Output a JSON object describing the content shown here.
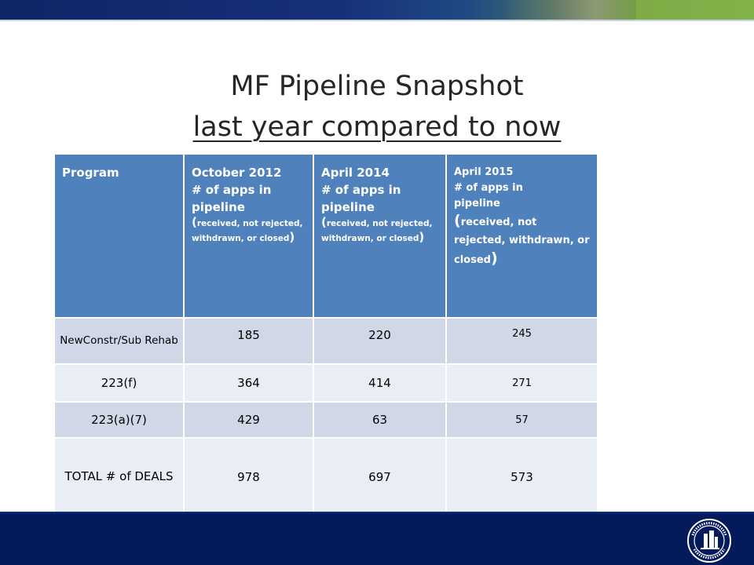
{
  "title": {
    "line1": "MF Pipeline Snapshot",
    "line2": "last year compared to now"
  },
  "table": {
    "columns": [
      {
        "label": "Program"
      },
      {
        "label": "October 2012",
        "line2": "# of  apps in",
        "line3": "pipeline",
        "note_open": "(",
        "note": "received, not rejected, withdrawn, or closed",
        "note_close": ")"
      },
      {
        "label": "April 2014",
        "line2": "# of apps in",
        "line3": "pipeline",
        "note_open": "(",
        "note": "received, not rejected, withdrawn, or closed",
        "note_close": ")"
      },
      {
        "label": "April 2015",
        "line2": "# of apps in",
        "line3": "pipeline",
        "note_open": "(",
        "note": "received, not rejected, withdrawn, or closed",
        "note_close": ")"
      }
    ],
    "rows": [
      {
        "program": "NewConstr/Sub Rehab",
        "oct_2012": "185",
        "apr_2014": "220",
        "apr_2015": "245"
      },
      {
        "program": "223(f)",
        "oct_2012": "364",
        "apr_2014": "414",
        "apr_2015": "271"
      },
      {
        "program": "223(a)(7)",
        "oct_2012": "429",
        "apr_2014": "63",
        "apr_2015": "57"
      },
      {
        "program": "TOTAL # of DEALS",
        "oct_2012": "978",
        "apr_2014": "697",
        "apr_2015": "573"
      }
    ]
  },
  "colors": {
    "header_bg": "#4f81bd",
    "row_dark": "#d0d8e8",
    "row_light": "#e9edf4",
    "footer_bg": "#041a5a"
  },
  "icons": {
    "seal": "hud-seal-icon"
  }
}
